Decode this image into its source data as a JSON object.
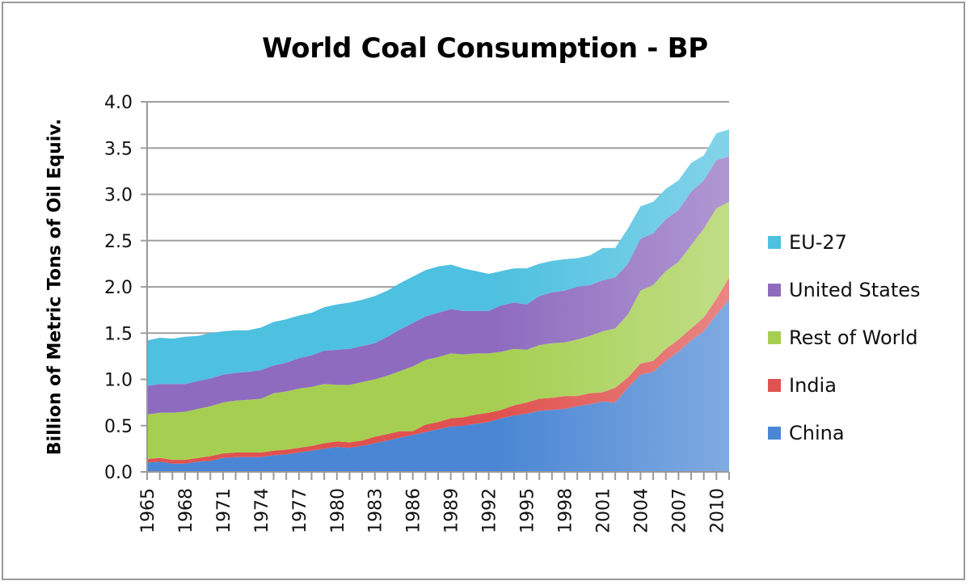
{
  "chart_data": {
    "type": "area",
    "stacked": true,
    "title": "World Coal Consumption - BP",
    "xlabel": "",
    "ylabel": "Billion of Metric Tons of Oil Equiv.",
    "ylim": [
      0,
      4.0
    ],
    "yticks": [
      "0.0",
      "0.5",
      "1.0",
      "1.5",
      "2.0",
      "2.5",
      "3.0",
      "3.5",
      "4.0"
    ],
    "ytick_values": [
      0,
      0.5,
      1.0,
      1.5,
      2.0,
      2.5,
      3.0,
      3.5,
      4.0
    ],
    "xtick_labels": [
      "1965",
      "1968",
      "1971",
      "1974",
      "1977",
      "1980",
      "1983",
      "1986",
      "1989",
      "1992",
      "1995",
      "1998",
      "2001",
      "2004",
      "2007",
      "2010"
    ],
    "grid": true,
    "legend_position": "right",
    "x": [
      1965,
      1966,
      1967,
      1968,
      1969,
      1970,
      1971,
      1972,
      1973,
      1974,
      1975,
      1976,
      1977,
      1978,
      1979,
      1980,
      1981,
      1982,
      1983,
      1984,
      1985,
      1986,
      1987,
      1988,
      1989,
      1990,
      1991,
      1992,
      1993,
      1994,
      1995,
      1996,
      1997,
      1998,
      1999,
      2000,
      2001,
      2002,
      2003,
      2004,
      2005,
      2006,
      2007,
      2008,
      2009,
      2010,
      2011
    ],
    "series": [
      {
        "name": "China",
        "color": "#4a86d4",
        "values": [
          0.1,
          0.11,
          0.09,
          0.09,
          0.11,
          0.12,
          0.15,
          0.16,
          0.16,
          0.16,
          0.18,
          0.19,
          0.21,
          0.23,
          0.25,
          0.27,
          0.26,
          0.28,
          0.31,
          0.34,
          0.37,
          0.4,
          0.43,
          0.46,
          0.49,
          0.5,
          0.52,
          0.54,
          0.58,
          0.61,
          0.63,
          0.66,
          0.67,
          0.68,
          0.71,
          0.73,
          0.76,
          0.75,
          0.91,
          1.05,
          1.08,
          1.2,
          1.3,
          1.42,
          1.52,
          1.7,
          1.86
        ]
      },
      {
        "name": "India",
        "color": "#e0524f",
        "values": [
          0.04,
          0.04,
          0.04,
          0.04,
          0.04,
          0.05,
          0.05,
          0.05,
          0.05,
          0.05,
          0.05,
          0.05,
          0.05,
          0.05,
          0.06,
          0.06,
          0.06,
          0.06,
          0.07,
          0.07,
          0.07,
          0.04,
          0.08,
          0.08,
          0.09,
          0.09,
          0.1,
          0.1,
          0.09,
          0.11,
          0.12,
          0.13,
          0.13,
          0.14,
          0.11,
          0.12,
          0.1,
          0.16,
          0.11,
          0.12,
          0.12,
          0.13,
          0.13,
          0.13,
          0.15,
          0.17,
          0.24
        ]
      },
      {
        "name": "Rest of World",
        "color": "#a6cf52",
        "values": [
          0.48,
          0.49,
          0.51,
          0.52,
          0.53,
          0.54,
          0.55,
          0.56,
          0.57,
          0.58,
          0.62,
          0.63,
          0.64,
          0.64,
          0.64,
          0.61,
          0.62,
          0.63,
          0.62,
          0.63,
          0.65,
          0.7,
          0.7,
          0.7,
          0.7,
          0.68,
          0.66,
          0.64,
          0.63,
          0.61,
          0.57,
          0.58,
          0.59,
          0.58,
          0.61,
          0.62,
          0.66,
          0.64,
          0.68,
          0.79,
          0.82,
          0.84,
          0.84,
          0.9,
          0.96,
          0.98,
          0.82
        ]
      },
      {
        "name": "United States",
        "color": "#8e6bbf",
        "values": [
          0.31,
          0.31,
          0.31,
          0.3,
          0.3,
          0.3,
          0.3,
          0.3,
          0.3,
          0.31,
          0.3,
          0.31,
          0.33,
          0.34,
          0.36,
          0.38,
          0.39,
          0.39,
          0.39,
          0.42,
          0.45,
          0.47,
          0.47,
          0.48,
          0.48,
          0.47,
          0.46,
          0.46,
          0.5,
          0.5,
          0.49,
          0.53,
          0.55,
          0.56,
          0.57,
          0.55,
          0.55,
          0.55,
          0.55,
          0.56,
          0.56,
          0.56,
          0.56,
          0.58,
          0.52,
          0.52,
          0.49
        ]
      },
      {
        "name": "EU-27",
        "color": "#4ec0e0",
        "values": [
          0.49,
          0.5,
          0.49,
          0.51,
          0.49,
          0.49,
          0.47,
          0.46,
          0.45,
          0.46,
          0.47,
          0.47,
          0.46,
          0.46,
          0.47,
          0.49,
          0.5,
          0.5,
          0.51,
          0.5,
          0.5,
          0.5,
          0.5,
          0.5,
          0.48,
          0.46,
          0.43,
          0.4,
          0.37,
          0.37,
          0.39,
          0.35,
          0.34,
          0.34,
          0.31,
          0.32,
          0.35,
          0.32,
          0.38,
          0.35,
          0.34,
          0.33,
          0.32,
          0.31,
          0.27,
          0.29,
          0.29
        ]
      }
    ]
  },
  "legend": {
    "items": [
      {
        "label": "EU-27",
        "color": "#4ec0e0"
      },
      {
        "label": "United States",
        "color": "#8e6bbf"
      },
      {
        "label": "Rest of World",
        "color": "#a6cf52"
      },
      {
        "label": "India",
        "color": "#e0524f"
      },
      {
        "label": "China",
        "color": "#4a86d4"
      }
    ]
  }
}
